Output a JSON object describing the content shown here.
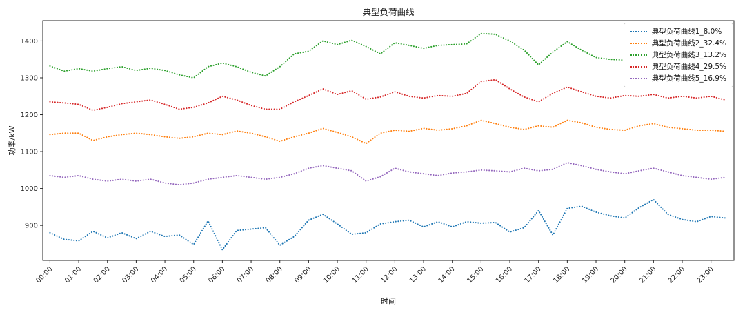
{
  "chart_data": {
    "type": "line",
    "line_style": "dotted",
    "title": "典型负荷曲线",
    "xlabel": "时间",
    "ylabel": "功率/kW",
    "grid": false,
    "legend_position": "upper right",
    "x_interval_hours": 0.5,
    "x_tick_labels": [
      "00:00",
      "01:00",
      "02:00",
      "03:00",
      "04:00",
      "05:00",
      "06:00",
      "07:00",
      "08:00",
      "09:00",
      "10:00",
      "11:00",
      "12:00",
      "13:00",
      "14:00",
      "15:00",
      "16:00",
      "17:00",
      "18:00",
      "19:00",
      "20:00",
      "21:00",
      "22:00",
      "23:00"
    ],
    "xlim": [
      -0.25,
      23.8
    ],
    "ylim": [
      805,
      1455
    ],
    "y_ticks": [
      900,
      1000,
      1100,
      1200,
      1300,
      1400
    ],
    "series": [
      {
        "name": "典型负荷曲线1_8.0%",
        "color": "#1f77b4",
        "values": [
          880,
          862,
          858,
          884,
          866,
          880,
          864,
          884,
          870,
          874,
          848,
          912,
          834,
          886,
          890,
          894,
          846,
          870,
          914,
          930,
          904,
          876,
          880,
          904,
          910,
          914,
          896,
          910,
          896,
          910,
          906,
          908,
          882,
          894,
          940,
          874,
          946,
          952,
          936,
          926,
          920,
          948,
          970,
          930,
          916,
          910,
          924,
          920
        ]
      },
      {
        "name": "典型负荷曲线2_32.4%",
        "color": "#ff7f0e",
        "values": [
          1146,
          1150,
          1150,
          1130,
          1140,
          1146,
          1150,
          1146,
          1140,
          1136,
          1140,
          1150,
          1146,
          1156,
          1150,
          1140,
          1128,
          1140,
          1150,
          1163,
          1152,
          1140,
          1122,
          1150,
          1158,
          1155,
          1163,
          1158,
          1162,
          1170,
          1185,
          1176,
          1166,
          1160,
          1170,
          1166,
          1185,
          1178,
          1166,
          1160,
          1158,
          1170,
          1176,
          1166,
          1162,
          1158,
          1158,
          1155
        ]
      },
      {
        "name": "典型负荷曲线3_13.2%",
        "color": "#2ca02c",
        "values": [
          1332,
          1318,
          1325,
          1318,
          1325,
          1330,
          1320,
          1326,
          1320,
          1308,
          1300,
          1330,
          1340,
          1330,
          1315,
          1305,
          1330,
          1365,
          1372,
          1400,
          1390,
          1402,
          1385,
          1365,
          1395,
          1388,
          1380,
          1388,
          1390,
          1392,
          1420,
          1418,
          1400,
          1375,
          1335,
          1370,
          1398,
          1375,
          1355,
          1350,
          1348,
          1352,
          1355,
          1350,
          1348,
          1352,
          1350,
          1345
        ]
      },
      {
        "name": "典型负荷曲线4_29.5%",
        "color": "#d62728",
        "values": [
          1235,
          1232,
          1228,
          1212,
          1220,
          1230,
          1235,
          1240,
          1228,
          1215,
          1220,
          1232,
          1250,
          1240,
          1225,
          1215,
          1215,
          1235,
          1252,
          1270,
          1255,
          1265,
          1242,
          1248,
          1262,
          1250,
          1245,
          1252,
          1250,
          1258,
          1290,
          1295,
          1270,
          1248,
          1235,
          1258,
          1275,
          1262,
          1250,
          1245,
          1252,
          1250,
          1255,
          1245,
          1250,
          1245,
          1250,
          1240
        ]
      },
      {
        "name": "典型负荷曲线5_16.9%",
        "color": "#9467bd",
        "values": [
          1035,
          1030,
          1035,
          1025,
          1020,
          1025,
          1020,
          1025,
          1015,
          1010,
          1015,
          1025,
          1030,
          1035,
          1030,
          1025,
          1030,
          1040,
          1055,
          1062,
          1055,
          1048,
          1020,
          1032,
          1055,
          1045,
          1040,
          1035,
          1042,
          1045,
          1050,
          1048,
          1045,
          1055,
          1048,
          1052,
          1070,
          1062,
          1052,
          1045,
          1040,
          1048,
          1055,
          1045,
          1035,
          1030,
          1025,
          1030
        ]
      }
    ]
  }
}
